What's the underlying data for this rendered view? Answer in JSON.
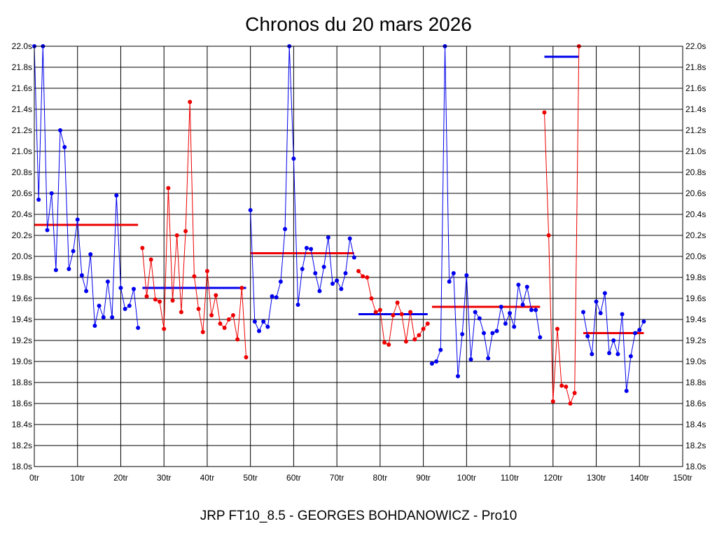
{
  "chart_data": {
    "type": "line",
    "title": "Chronos du 20 mars 2026",
    "footer": "JRP FT10_8.5 - GEORGES BOHDANOWICZ - Pro10",
    "xlim": [
      0,
      150
    ],
    "ylim": [
      18.0,
      22.0
    ],
    "grid": true,
    "x_ticks": [
      0,
      10,
      20,
      30,
      40,
      50,
      60,
      70,
      80,
      90,
      100,
      110,
      120,
      130,
      140,
      150
    ],
    "x_tick_labels": [
      "0tr",
      "10tr",
      "20tr",
      "30tr",
      "40tr",
      "50tr",
      "60tr",
      "70tr",
      "80tr",
      "90tr",
      "100tr",
      "110tr",
      "120tr",
      "130tr",
      "140tr",
      "150tr"
    ],
    "y_ticks": [
      18.0,
      18.2,
      18.4,
      18.6,
      18.8,
      19.0,
      19.2,
      19.4,
      19.6,
      19.8,
      20.0,
      20.2,
      20.4,
      20.6,
      20.8,
      21.0,
      21.2,
      21.4,
      21.6,
      21.8,
      22.0
    ],
    "y_tick_labels": [
      "18.0s",
      "18.2s",
      "18.4s",
      "18.6s",
      "18.8s",
      "19.0s",
      "19.2s",
      "19.4s",
      "19.6s",
      "19.8s",
      "20.0s",
      "20.2s",
      "20.4s",
      "20.6s",
      "20.8s",
      "21.0s",
      "21.2s",
      "21.4s",
      "21.6s",
      "21.8s",
      "22.0s"
    ],
    "series": [
      {
        "color": "#0000ee",
        "values": [
          [
            0,
            22.0
          ],
          [
            1,
            20.54
          ],
          [
            2,
            22.0
          ],
          [
            3,
            20.25
          ],
          [
            4,
            20.6
          ],
          [
            5,
            19.87
          ],
          [
            6,
            21.2
          ],
          [
            7,
            21.04
          ],
          [
            8,
            19.88
          ],
          [
            9,
            20.05
          ],
          [
            10,
            20.35
          ],
          [
            11,
            19.82
          ],
          [
            12,
            19.67
          ],
          [
            13,
            20.02
          ],
          [
            14,
            19.34
          ],
          [
            15,
            19.53
          ],
          [
            16,
            19.42
          ],
          [
            17,
            19.76
          ],
          [
            18,
            19.42
          ],
          [
            19,
            20.58
          ],
          [
            20,
            19.7
          ],
          [
            21,
            19.5
          ],
          [
            22,
            19.53
          ],
          [
            23,
            19.69
          ],
          [
            24,
            19.32
          ]
        ],
        "mean": 20.3
      },
      {
        "color": "#ee0000",
        "values": [
          [
            25,
            20.08
          ],
          [
            26,
            19.62
          ],
          [
            27,
            19.97
          ],
          [
            28,
            19.59
          ],
          [
            29,
            19.57
          ],
          [
            30,
            19.31
          ],
          [
            31,
            20.65
          ],
          [
            32,
            19.58
          ],
          [
            33,
            20.2
          ],
          [
            34,
            19.47
          ],
          [
            35,
            20.24
          ],
          [
            36,
            21.47
          ],
          [
            37,
            19.81
          ],
          [
            38,
            19.5
          ],
          [
            39,
            19.28
          ],
          [
            40,
            19.86
          ],
          [
            41,
            19.44
          ],
          [
            42,
            19.63
          ],
          [
            43,
            19.36
          ],
          [
            44,
            19.32
          ],
          [
            45,
            19.4
          ],
          [
            46,
            19.44
          ],
          [
            47,
            19.21
          ],
          [
            48,
            19.7
          ],
          [
            49,
            19.04
          ]
        ],
        "mean": 19.7
      },
      {
        "color": "#0000ee",
        "values": [
          [
            50,
            20.44
          ],
          [
            51,
            19.38
          ],
          [
            52,
            19.29
          ],
          [
            53,
            19.38
          ],
          [
            54,
            19.33
          ],
          [
            55,
            19.62
          ],
          [
            56,
            19.61
          ],
          [
            57,
            19.76
          ],
          [
            58,
            20.26
          ],
          [
            59,
            22.0
          ],
          [
            60,
            20.93
          ],
          [
            61,
            19.54
          ],
          [
            62,
            19.88
          ],
          [
            63,
            20.08
          ],
          [
            64,
            20.07
          ],
          [
            65,
            19.84
          ],
          [
            66,
            19.67
          ],
          [
            67,
            19.9
          ],
          [
            68,
            20.18
          ],
          [
            69,
            19.74
          ],
          [
            70,
            19.77
          ],
          [
            71,
            19.69
          ],
          [
            72,
            19.84
          ],
          [
            73,
            20.17
          ],
          [
            74,
            19.99
          ]
        ],
        "mean": 20.03
      },
      {
        "color": "#ee0000",
        "values": [
          [
            75,
            19.86
          ],
          [
            76,
            19.81
          ],
          [
            77,
            19.8
          ],
          [
            78,
            19.6
          ],
          [
            79,
            19.47
          ],
          [
            80,
            19.49
          ],
          [
            81,
            19.18
          ],
          [
            82,
            19.16
          ],
          [
            83,
            19.44
          ],
          [
            84,
            19.56
          ],
          [
            85,
            19.45
          ],
          [
            86,
            19.19
          ],
          [
            87,
            19.47
          ],
          [
            88,
            19.21
          ],
          [
            89,
            19.25
          ],
          [
            90,
            19.31
          ],
          [
            91,
            19.36
          ]
        ],
        "mean": 19.45
      },
      {
        "color": "#0000ee",
        "values": [
          [
            92,
            18.98
          ],
          [
            93,
            19.0
          ],
          [
            94,
            19.11
          ],
          [
            95,
            22.0
          ],
          [
            96,
            19.76
          ],
          [
            97,
            19.84
          ],
          [
            98,
            18.86
          ],
          [
            99,
            19.26
          ],
          [
            100,
            19.82
          ],
          [
            101,
            19.02
          ],
          [
            102,
            19.47
          ],
          [
            103,
            19.41
          ],
          [
            104,
            19.27
          ],
          [
            105,
            19.03
          ],
          [
            106,
            19.27
          ],
          [
            107,
            19.29
          ],
          [
            108,
            19.52
          ],
          [
            109,
            19.36
          ],
          [
            110,
            19.46
          ],
          [
            111,
            19.33
          ],
          [
            112,
            19.73
          ],
          [
            113,
            19.54
          ],
          [
            114,
            19.71
          ],
          [
            115,
            19.49
          ],
          [
            116,
            19.49
          ],
          [
            117,
            19.23
          ]
        ],
        "mean": 19.52
      },
      {
        "color": "#ee0000",
        "values": [
          [
            118,
            21.37
          ],
          [
            119,
            20.2
          ],
          [
            120,
            18.62
          ],
          [
            121,
            19.31
          ],
          [
            122,
            18.77
          ],
          [
            123,
            18.76
          ],
          [
            124,
            18.6
          ],
          [
            125,
            18.7
          ],
          [
            126,
            22.0
          ]
        ],
        "mean": 21.9
      },
      {
        "color": "#0000ee",
        "values": [
          [
            127,
            19.47
          ],
          [
            128,
            19.24
          ],
          [
            129,
            19.07
          ],
          [
            130,
            19.57
          ],
          [
            131,
            19.46
          ],
          [
            132,
            19.65
          ],
          [
            133,
            19.08
          ],
          [
            134,
            19.2
          ],
          [
            135,
            19.07
          ],
          [
            136,
            19.45
          ],
          [
            137,
            18.72
          ],
          [
            138,
            19.05
          ],
          [
            139,
            19.27
          ],
          [
            140,
            19.3
          ],
          [
            141,
            19.38
          ]
        ],
        "mean": 19.27
      }
    ],
    "mean_segments": [
      {
        "color": "#ee0000",
        "x": [
          0,
          24
        ],
        "y": 20.3
      },
      {
        "color": "#0000ee",
        "x": [
          25,
          49
        ],
        "y": 19.7
      },
      {
        "color": "#ee0000",
        "x": [
          50,
          74
        ],
        "y": 20.03
      },
      {
        "color": "#0000ee",
        "x": [
          75,
          91
        ],
        "y": 19.45
      },
      {
        "color": "#ee0000",
        "x": [
          92,
          117
        ],
        "y": 19.52
      },
      {
        "color": "#0000ee",
        "x": [
          118,
          126
        ],
        "y": 21.9
      },
      {
        "color": "#ee0000",
        "x": [
          127,
          141
        ],
        "y": 19.27
      }
    ]
  }
}
